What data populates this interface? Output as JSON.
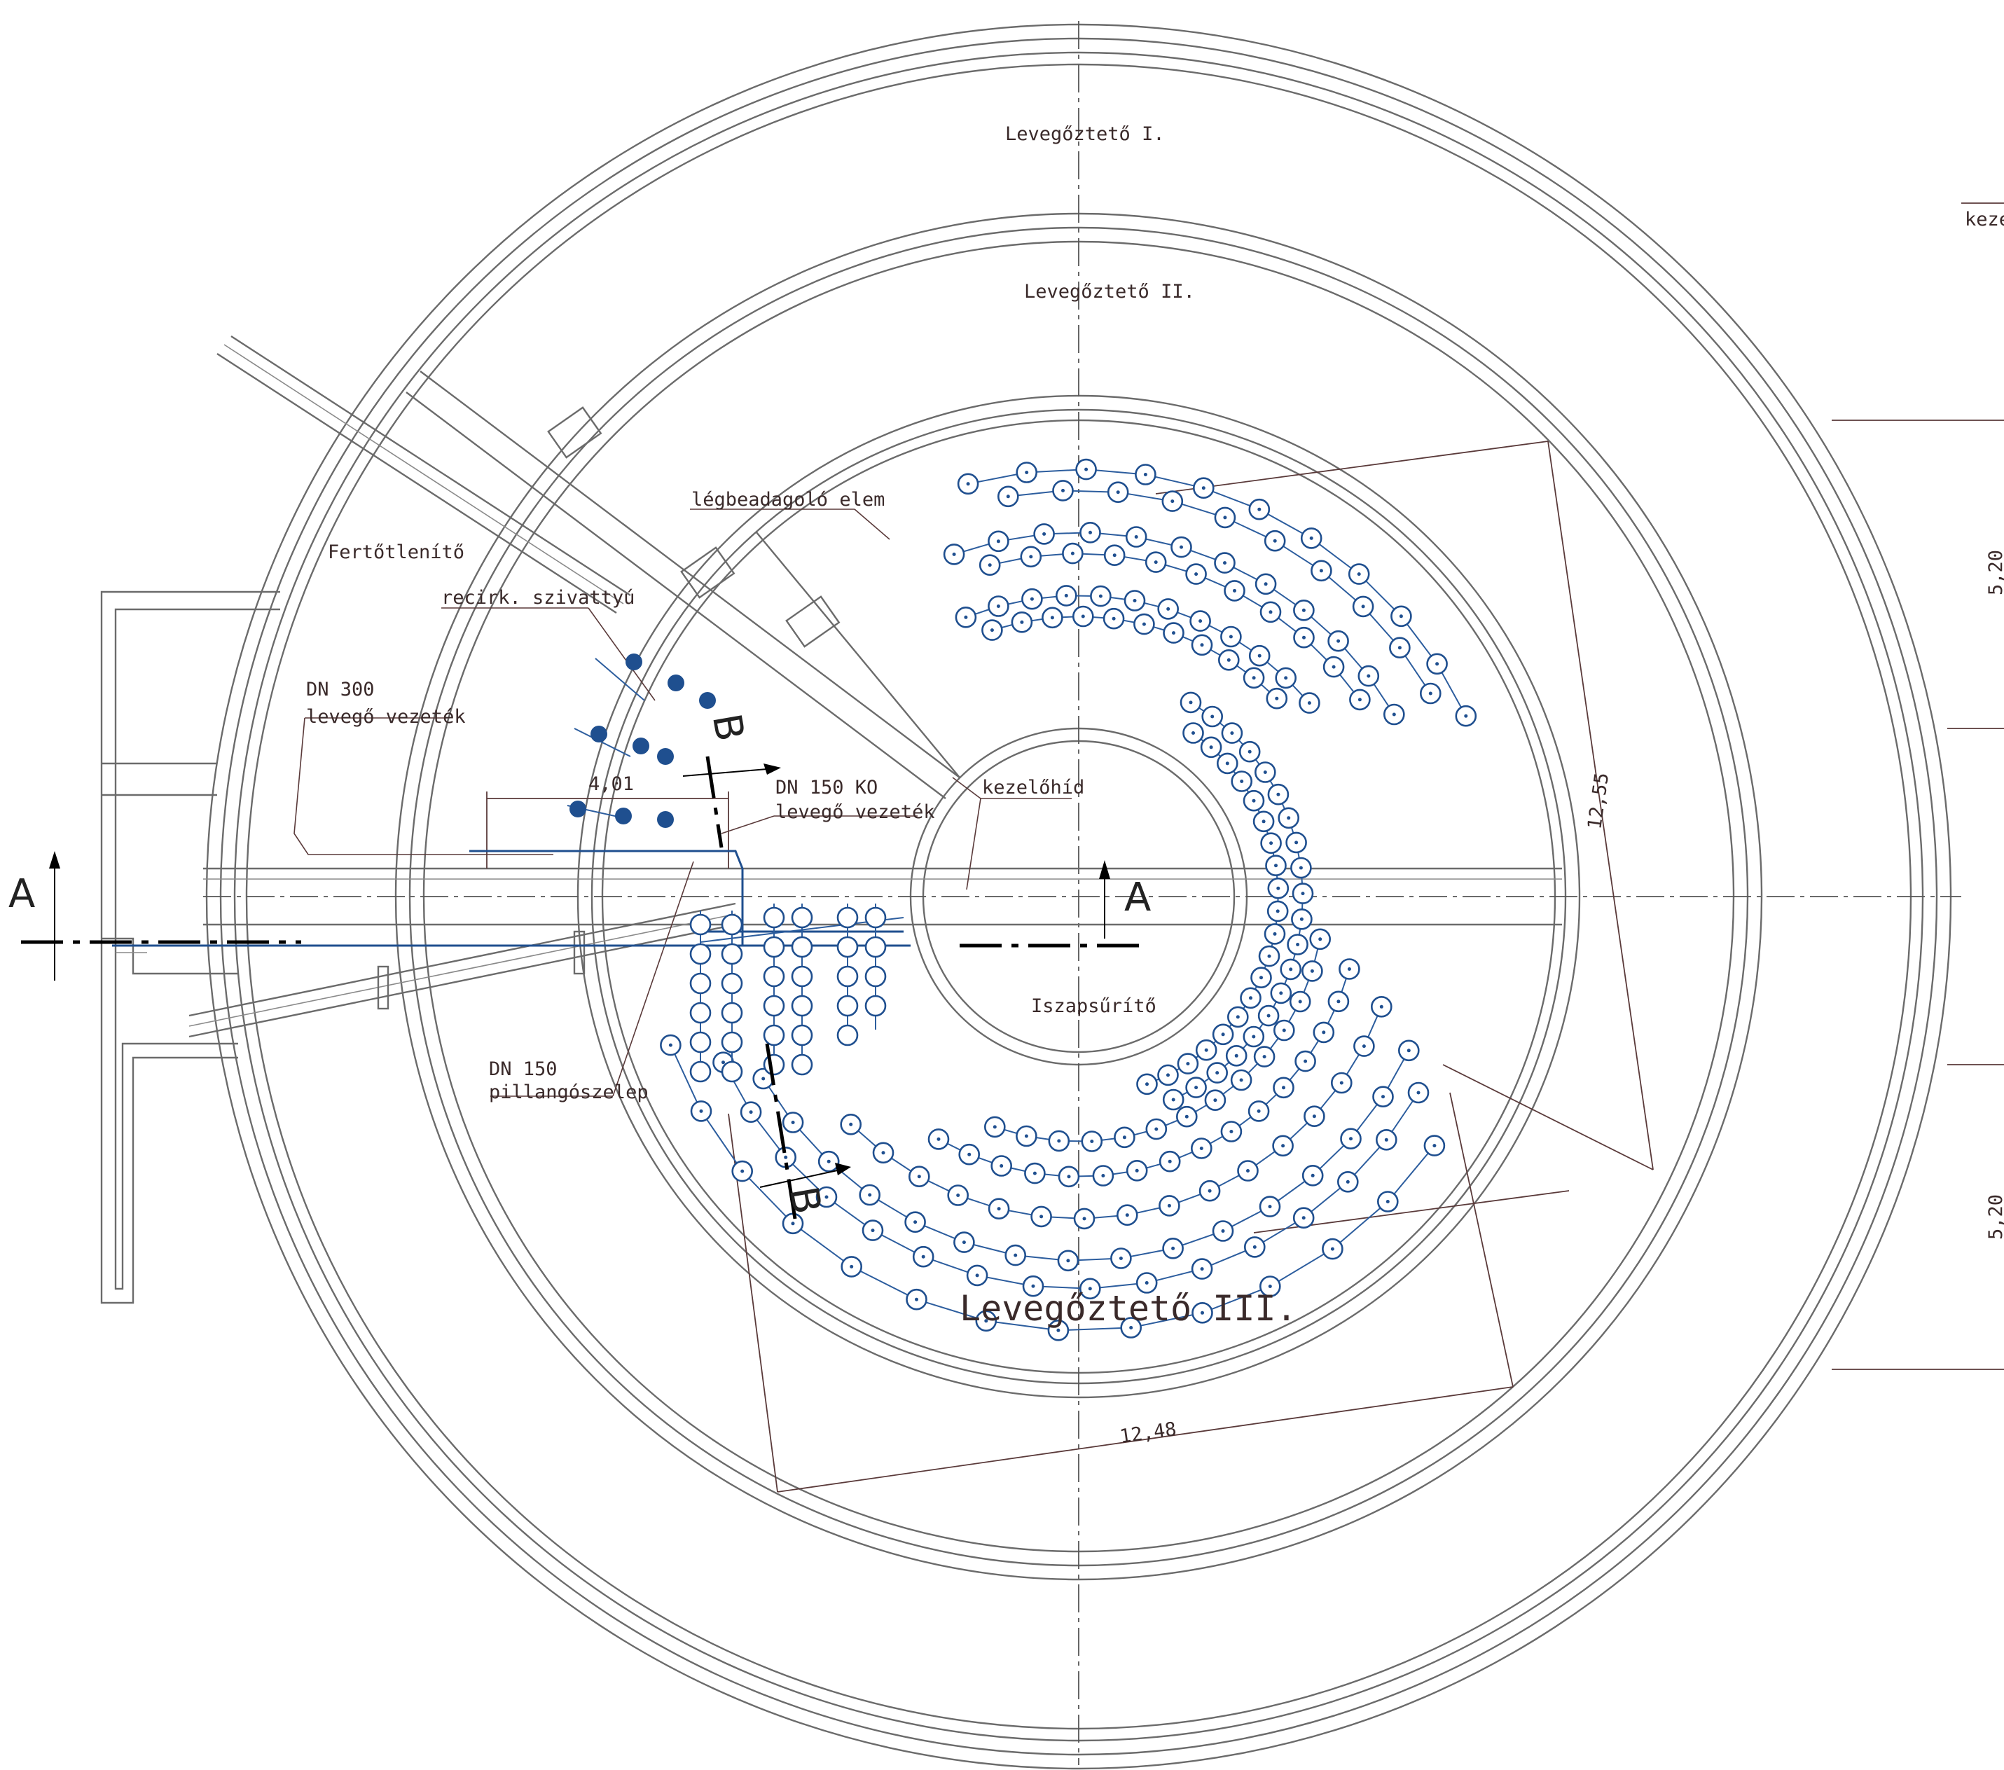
{
  "labels": {
    "aerator_1": "Levegőztető I.",
    "aerator_2": "Levegőztető II.",
    "aerator_3": "Levegőztető III.",
    "disinfector": "Fertőtlenítő",
    "recirc_pump": "recirk. szivattyú",
    "air_inlet_element": "légbeadagoló elem",
    "dn300": "DN 300",
    "dn300_pipe": "levegő vezeték",
    "dn150ko": "DN 150 KO",
    "dn150ko_pipe": "levegő vezeték",
    "operating_bridge": "kezelőhíd",
    "sludge_thickener": "Iszapsűrítő",
    "dn150": "DN 150",
    "butterfly_valve": "pillangószelep",
    "edge_text": "keze"
  },
  "sections": {
    "a_left": "A",
    "a_right": "A",
    "b_top": "B",
    "b_bottom": "B"
  },
  "dimensions": {
    "d_401": "4,01",
    "d_1255": "12,55",
    "d_1248": "12,48",
    "d_520_top": "5,20",
    "d_520_bottom": "5,20"
  },
  "colors": {
    "pipe": "#1f4f8f",
    "outline": "#6b6b6b",
    "dimension": "#5a3a3a"
  }
}
